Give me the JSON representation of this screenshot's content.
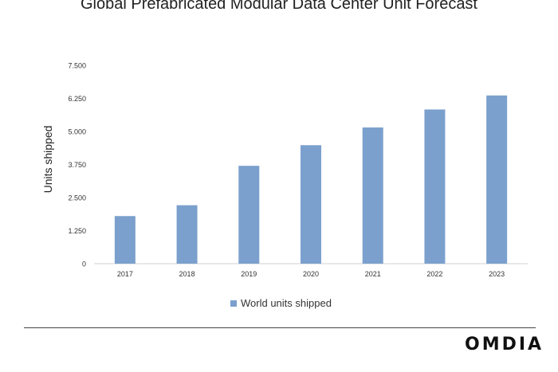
{
  "chart_data": {
    "type": "bar",
    "title": "Global Prefabricated Modular Data Center Unit Forecast",
    "xlabel": "",
    "ylabel": "Units shipped",
    "categories": [
      "2017",
      "2018",
      "2019",
      "2020",
      "2021",
      "2022",
      "2023"
    ],
    "series": [
      {
        "name": "World units shipped",
        "values": [
          1800,
          2210,
          3700,
          4480,
          5150,
          5830,
          6360
        ],
        "color": "#7ba0cd"
      }
    ],
    "ylim": [
      0,
      7500
    ],
    "yticks": [
      "0",
      "1.250",
      "2.500",
      "3.750",
      "5.000",
      "6.250",
      "7.500"
    ],
    "grid": false,
    "legend_position": "bottom"
  },
  "brand": {
    "name": "OMDIA"
  }
}
